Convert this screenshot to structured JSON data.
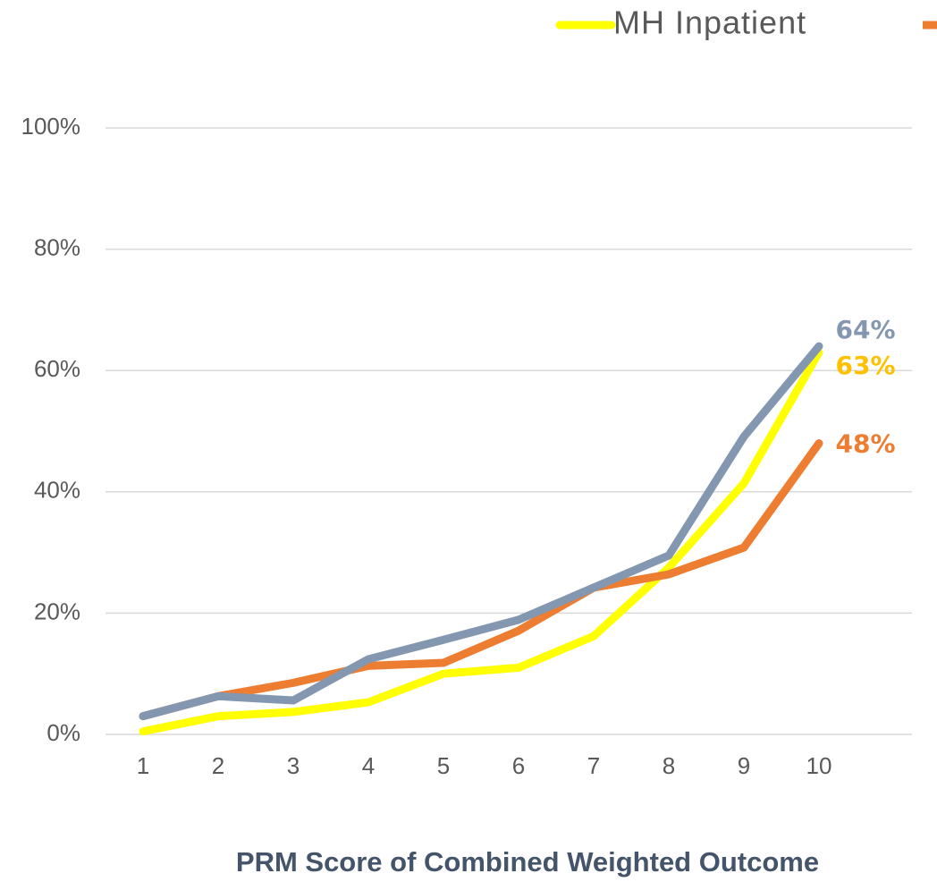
{
  "chart_data": {
    "type": "line",
    "x_label": "PRM Score of Combined Weighted Outcome",
    "categories": [
      "1",
      "2",
      "3",
      "4",
      "5",
      "6",
      "7",
      "8",
      "9",
      "10"
    ],
    "series": [
      {
        "name": "MH Inpatient",
        "color": "#ffff00",
        "label_color": "#ffc000",
        "values": [
          0.5,
          3,
          3.7,
          5.3,
          10,
          11,
          16.2,
          27.5,
          41.4,
          63
        ],
        "value_labels": [
          null,
          null,
          null,
          null,
          null,
          null,
          null,
          null,
          null,
          "63%"
        ]
      },
      {
        "color": "#ed7d31",
        "label_color": "#ed7d31",
        "values": [
          3,
          6.3,
          8.5,
          11.3,
          11.8,
          17.1,
          24.2,
          26.4,
          30.8,
          48
        ],
        "value_labels": [
          null,
          null,
          null,
          null,
          null,
          null,
          null,
          null,
          null,
          "48%"
        ]
      },
      {
        "color": "#8497b0",
        "label_color": "#8497b0",
        "values": [
          3,
          6.3,
          5.6,
          12.4,
          15.6,
          18.9,
          24.2,
          29.5,
          49.1,
          64
        ],
        "value_labels": [
          null,
          null,
          null,
          null,
          null,
          null,
          null,
          null,
          null,
          "64%"
        ]
      }
    ],
    "ylim": [
      0,
      100
    ],
    "yticks": [
      {
        "value": 0,
        "label": "0%"
      },
      {
        "value": 20,
        "label": "20%"
      },
      {
        "value": 40,
        "label": "40%"
      },
      {
        "value": 60,
        "label": "60%"
      },
      {
        "value": 80,
        "label": "80%"
      },
      {
        "value": 100,
        "label": "100%"
      }
    ],
    "grid": true
  }
}
